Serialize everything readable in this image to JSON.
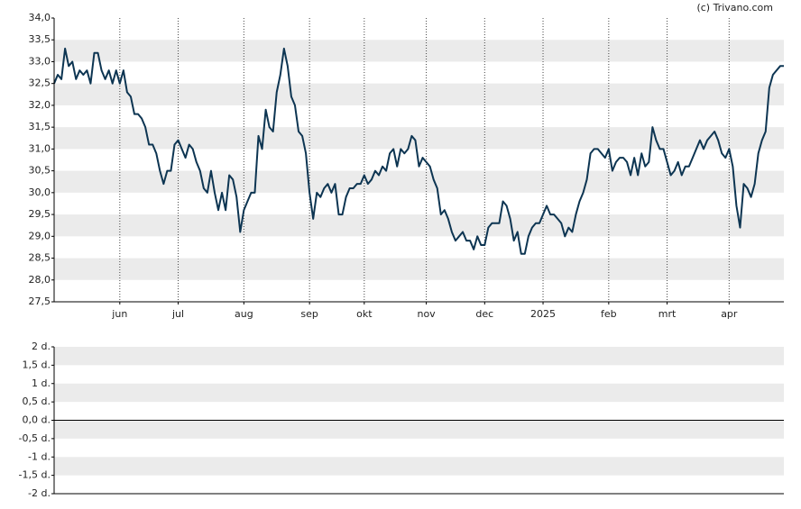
{
  "chart_data": [
    {
      "type": "line",
      "source": "(c) Trivano.com",
      "series": [
        {
          "color": "#0d3552",
          "values": [
            32.5,
            32.7,
            32.6,
            33.3,
            32.9,
            33.0,
            32.6,
            32.8,
            32.7,
            32.8,
            32.5,
            33.2,
            33.2,
            32.8,
            32.6,
            32.8,
            32.5,
            32.8,
            32.5,
            32.8,
            32.3,
            32.2,
            31.8,
            31.8,
            31.7,
            31.5,
            31.1,
            31.1,
            30.9,
            30.5,
            30.2,
            30.5,
            30.5,
            31.1,
            31.2,
            31.0,
            30.8,
            31.1,
            31.0,
            30.7,
            30.5,
            30.1,
            30.0,
            30.5,
            30.0,
            29.6,
            30.0,
            29.6,
            30.4,
            30.3,
            29.9,
            29.1,
            29.6,
            29.8,
            30.0,
            30.0,
            31.3,
            31.0,
            31.9,
            31.5,
            31.4,
            32.3,
            32.7,
            33.3,
            32.9,
            32.2,
            32.0,
            31.4,
            31.3,
            30.9,
            30.0,
            29.4,
            30.0,
            29.9,
            30.1,
            30.2,
            30.0,
            30.2,
            29.5,
            29.5,
            29.9,
            30.1,
            30.1,
            30.2,
            30.2,
            30.4,
            30.2,
            30.3,
            30.5,
            30.4,
            30.6,
            30.5,
            30.9,
            31.0,
            30.6,
            31.0,
            30.9,
            31.0,
            31.3,
            31.2,
            30.6,
            30.8,
            30.7,
            30.6,
            30.3,
            30.1,
            29.5,
            29.6,
            29.4,
            29.1,
            28.9,
            29.0,
            29.1,
            28.9,
            28.9,
            28.7,
            29.0,
            28.8,
            28.8,
            29.2,
            29.3,
            29.3,
            29.3,
            29.8,
            29.7,
            29.4,
            28.9,
            29.1,
            28.6,
            28.6,
            29.0,
            29.2,
            29.3,
            29.3,
            29.5,
            29.7,
            29.5,
            29.5,
            29.4,
            29.3,
            29.0,
            29.2,
            29.1,
            29.5,
            29.8,
            30.0,
            30.3,
            30.9,
            31.0,
            31.0,
            30.9,
            30.8,
            31.0,
            30.5,
            30.7,
            30.8,
            30.8,
            30.7,
            30.4,
            30.8,
            30.4,
            30.9,
            30.6,
            30.7,
            31.5,
            31.2,
            31.0,
            31.0,
            30.7,
            30.4,
            30.5,
            30.7,
            30.4,
            30.6,
            30.6,
            30.8,
            31.0,
            31.2,
            31.0,
            31.2,
            31.3,
            31.4,
            31.2,
            30.9,
            30.8,
            31.0,
            30.6,
            29.7,
            29.2,
            30.2,
            30.1,
            29.9,
            30.2,
            30.9,
            31.2,
            31.4,
            32.4,
            32.7,
            32.8,
            32.9,
            32.9
          ]
        }
      ],
      "xlim": [
        0,
        200
      ],
      "xticks": [
        {
          "value": 18,
          "label": "jun"
        },
        {
          "value": 34,
          "label": "jul"
        },
        {
          "value": 52,
          "label": "aug"
        },
        {
          "value": 70,
          "label": "sep"
        },
        {
          "value": 85,
          "label": "okt"
        },
        {
          "value": 102,
          "label": "nov"
        },
        {
          "value": 118,
          "label": "dec"
        },
        {
          "value": 134,
          "label": "2025"
        },
        {
          "value": 152,
          "label": "feb"
        },
        {
          "value": 168,
          "label": "mrt"
        },
        {
          "value": 185,
          "label": "apr"
        }
      ],
      "ylim": [
        27.5,
        34.0
      ],
      "yticks": [
        {
          "value": 27.5,
          "label": "27,5"
        },
        {
          "value": 28.0,
          "label": "28,0"
        },
        {
          "value": 28.5,
          "label": "28,5"
        },
        {
          "value": 29.0,
          "label": "29,0"
        },
        {
          "value": 29.5,
          "label": "29,5"
        },
        {
          "value": 30.0,
          "label": "30,0"
        },
        {
          "value": 30.5,
          "label": "30,5"
        },
        {
          "value": 31.0,
          "label": "31,0"
        },
        {
          "value": 31.5,
          "label": "31,5"
        },
        {
          "value": 32.0,
          "label": "32,0"
        },
        {
          "value": 32.5,
          "label": "32,5"
        },
        {
          "value": 33.0,
          "label": "33,0"
        },
        {
          "value": 33.5,
          "label": "33,5"
        },
        {
          "value": 34.0,
          "label": "34,0"
        }
      ],
      "grid": true
    },
    {
      "type": "line",
      "ylim": [
        -2,
        2
      ],
      "yticks": [
        {
          "value": -2,
          "label": "-2 d."
        },
        {
          "value": -1.5,
          "label": "-1,5 d."
        },
        {
          "value": -1,
          "label": "-1 d."
        },
        {
          "value": -0.5,
          "label": "-0,5 d."
        },
        {
          "value": 0,
          "label": "0,0 d."
        },
        {
          "value": 0.5,
          "label": "0,5 d."
        },
        {
          "value": 1,
          "label": "1 d."
        },
        {
          "value": 1.5,
          "label": "1,5 d."
        },
        {
          "value": 2,
          "label": "2 d."
        }
      ],
      "grid": true
    }
  ]
}
